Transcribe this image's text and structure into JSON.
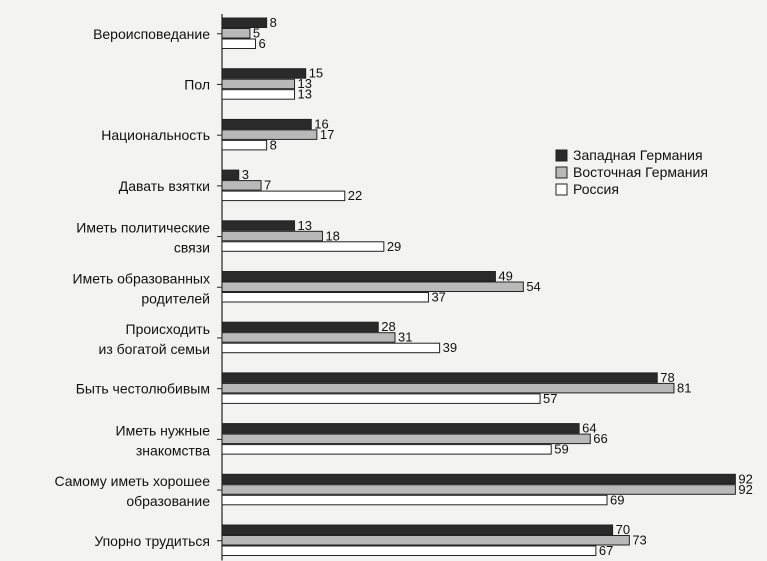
{
  "chart_data": {
    "type": "bar",
    "orientation": "horizontal",
    "categories": [
      [
        "Вероисповедание"
      ],
      [
        "Пол"
      ],
      [
        "Национальность"
      ],
      [
        "Давать взятки"
      ],
      [
        "Иметь политические",
        "связи"
      ],
      [
        "Иметь образованных",
        "родителей"
      ],
      [
        "Происходить",
        "из богатой семьи"
      ],
      [
        "Быть честолюбивым"
      ],
      [
        "Иметь нужные",
        "знакомства"
      ],
      [
        "Самому иметь хорошее",
        "образование"
      ],
      [
        "Упорно трудиться"
      ]
    ],
    "series": [
      {
        "name": "Западная Германия",
        "color": "#2a2a2a",
        "values": [
          8,
          15,
          16,
          3,
          13,
          49,
          28,
          78,
          64,
          92,
          70
        ]
      },
      {
        "name": "Восточная Германия",
        "color": "#b9b9b9",
        "values": [
          5,
          13,
          17,
          7,
          18,
          54,
          31,
          81,
          66,
          92,
          73
        ]
      },
      {
        "name": "Россия",
        "color": "#ffffff",
        "values": [
          6,
          13,
          8,
          22,
          29,
          37,
          39,
          57,
          59,
          69,
          67
        ]
      }
    ],
    "xlim": [
      0,
      92
    ],
    "legend_position": "right",
    "grid": false
  }
}
